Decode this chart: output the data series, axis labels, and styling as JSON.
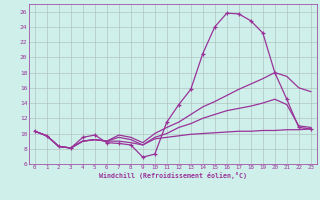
{
  "xlabel": "Windchill (Refroidissement éolien,°C)",
  "bg_color": "#cff0ea",
  "grid_color": "#aabbb8",
  "line_color": "#993399",
  "xlim": [
    -0.5,
    23.5
  ],
  "ylim": [
    6,
    27
  ],
  "xticks": [
    0,
    1,
    2,
    3,
    4,
    5,
    6,
    7,
    8,
    9,
    10,
    11,
    12,
    13,
    14,
    15,
    16,
    17,
    18,
    19,
    20,
    21,
    22,
    23
  ],
  "yticks": [
    6,
    8,
    10,
    12,
    14,
    16,
    18,
    20,
    22,
    24,
    26
  ],
  "curve_spike": {
    "x": [
      0,
      1,
      2,
      3,
      4,
      5,
      6,
      7,
      8,
      9,
      10,
      11,
      12,
      13,
      14,
      15,
      16,
      17,
      18,
      19,
      20,
      21,
      22,
      23
    ],
    "y": [
      10.3,
      9.7,
      8.3,
      8.1,
      9.5,
      9.8,
      8.8,
      8.7,
      8.5,
      6.9,
      7.3,
      11.5,
      13.8,
      15.8,
      20.5,
      24.0,
      25.8,
      25.7,
      24.8,
      23.2,
      18.0,
      14.5,
      10.8,
      10.6
    ]
  },
  "curve_high": {
    "x": [
      0,
      1,
      2,
      3,
      4,
      5,
      6,
      7,
      8,
      9,
      10,
      11,
      12,
      13,
      14,
      15,
      16,
      17,
      18,
      19,
      20,
      21,
      22,
      23
    ],
    "y": [
      10.3,
      9.7,
      8.3,
      8.1,
      9.0,
      9.2,
      9.0,
      9.8,
      9.5,
      8.8,
      10.0,
      10.8,
      11.5,
      12.5,
      13.5,
      14.2,
      15.0,
      15.8,
      16.5,
      17.2,
      18.0,
      17.5,
      16.0,
      15.5
    ]
  },
  "curve_mid": {
    "x": [
      0,
      1,
      2,
      3,
      4,
      5,
      6,
      7,
      8,
      9,
      10,
      11,
      12,
      13,
      14,
      15,
      16,
      17,
      18,
      19,
      20,
      21,
      22,
      23
    ],
    "y": [
      10.3,
      9.7,
      8.3,
      8.1,
      9.0,
      9.2,
      9.0,
      9.5,
      9.2,
      8.5,
      9.5,
      10.0,
      10.8,
      11.3,
      12.0,
      12.5,
      13.0,
      13.3,
      13.6,
      14.0,
      14.5,
      13.8,
      11.0,
      10.8
    ]
  },
  "curve_flat": {
    "x": [
      0,
      1,
      2,
      3,
      4,
      5,
      6,
      7,
      8,
      9,
      10,
      11,
      12,
      13,
      14,
      15,
      16,
      17,
      18,
      19,
      20,
      21,
      22,
      23
    ],
    "y": [
      10.3,
      9.7,
      8.3,
      8.1,
      9.0,
      9.2,
      9.0,
      9.0,
      8.8,
      8.5,
      9.3,
      9.5,
      9.7,
      9.9,
      10.0,
      10.1,
      10.2,
      10.3,
      10.3,
      10.4,
      10.4,
      10.5,
      10.5,
      10.6
    ]
  }
}
